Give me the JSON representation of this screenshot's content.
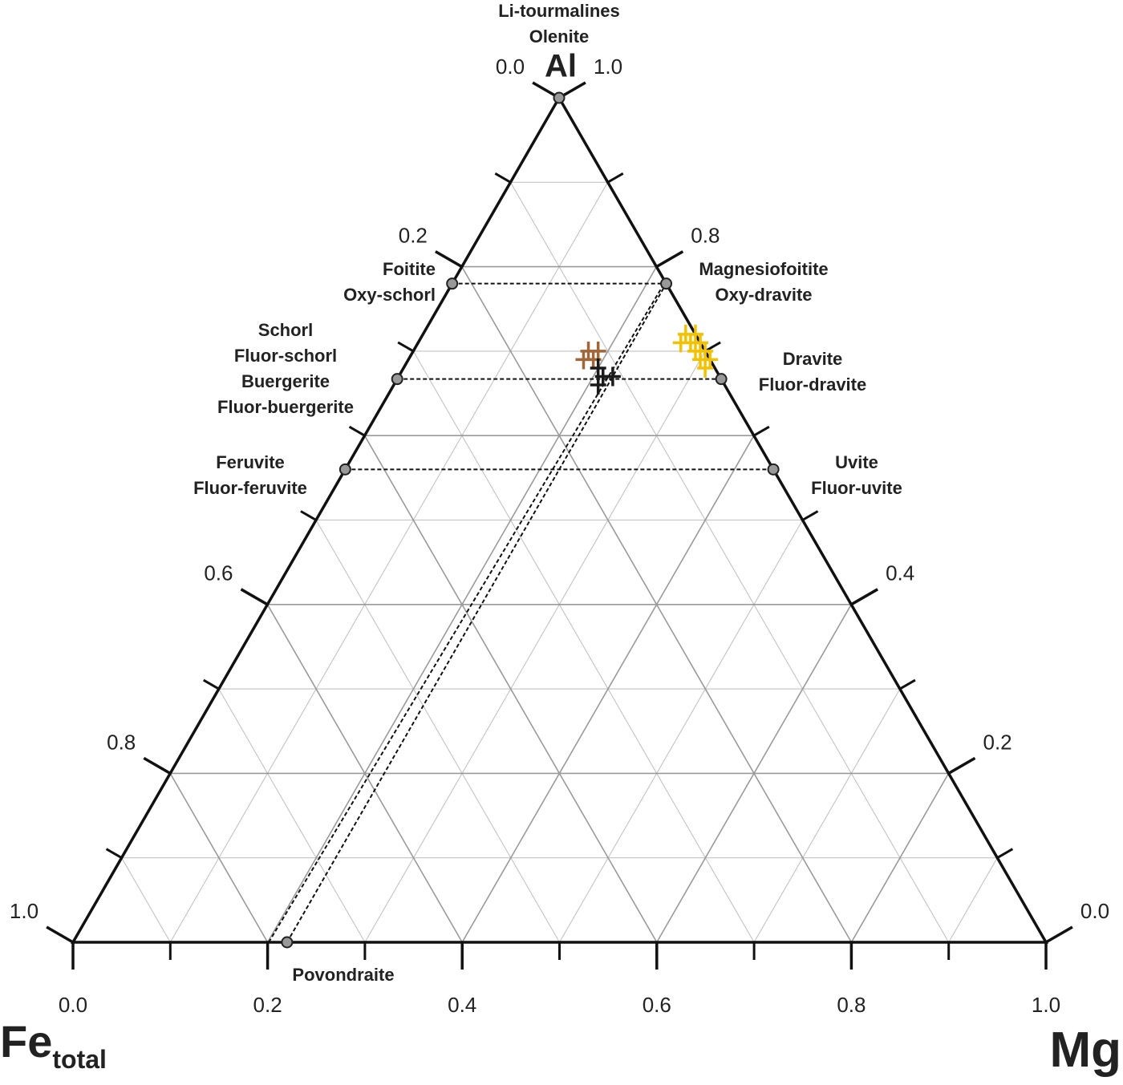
{
  "chart_data": {
    "type": "ternary",
    "vertex_labels": {
      "al": "Al",
      "fe": "Fe",
      "fe_sub": "total",
      "mg": "Mg"
    },
    "grid": [
      0.1,
      0.2,
      0.3,
      0.4,
      0.5,
      0.6,
      0.7,
      0.8,
      0.9
    ],
    "grid_color": "#9a9a9a",
    "bottom_ticks": [
      {
        "value": 0,
        "label": "0.0"
      },
      0.2,
      0.4,
      0.6,
      0.8,
      {
        "value": 1,
        "label": "1.0"
      }
    ],
    "left_ticks": [
      {
        "value": 0,
        "label": "0.0"
      },
      0.2,
      0.6,
      0.8,
      {
        "value": 1,
        "label": "1.0"
      }
    ],
    "right_ticks": [
      {
        "value": 1,
        "label": "1.0"
      },
      0.8,
      0.4,
      0.2,
      {
        "value": 0,
        "label": "0.0"
      }
    ],
    "endmembers": [
      {
        "labels": [
          "Li-tourmalines",
          "Olenite"
        ],
        "al": 1,
        "fe": 0,
        "mg": 0
      },
      {
        "labels": [
          "Foitite",
          "Oxy-schorl"
        ],
        "al": 0.78,
        "fe": 0.22,
        "mg": 0
      },
      {
        "labels": [
          "Magnesiofoitite",
          "Oxy-dravite"
        ],
        "al": 0.78,
        "fe": 0,
        "mg": 0.22
      },
      {
        "labels": [
          "Schorl",
          "Fluor-schorl",
          "Buergerite",
          "Fluor-buergerite"
        ],
        "al": 0.667,
        "fe": 0.333,
        "mg": 0
      },
      {
        "labels": [
          "Dravite",
          "Fluor-dravite"
        ],
        "al": 0.667,
        "fe": 0,
        "mg": 0.333
      },
      {
        "labels": [
          "Feruvite",
          "Fluor-feruvite"
        ],
        "al": 0.56,
        "fe": 0.44,
        "mg": 0
      },
      {
        "labels": [
          "Uvite",
          "Fluor-uvite"
        ],
        "al": 0.56,
        "fe": 0,
        "mg": 0.44
      },
      {
        "labels": [
          "Povondraite"
        ],
        "al": 0,
        "fe": 0.78,
        "mg": 0.22
      }
    ],
    "series": [
      {
        "color": "#a0673a",
        "al": [
          0.7,
          0.69,
          0.7,
          0.69
        ],
        "fe": [
          0.12,
          0.13,
          0.11,
          0.12
        ],
        "mg": [
          0.18,
          0.18,
          0.19,
          0.19
        ]
      },
      {
        "color": "#1a1a1a",
        "al": [
          0.68,
          0.67,
          0.67,
          0.66
        ],
        "fe": [
          0.12,
          0.12,
          0.11,
          0.13
        ],
        "mg": [
          0.2,
          0.21,
          0.22,
          0.21
        ]
      },
      {
        "color": "#f2c200",
        "al": [
          0.72,
          0.71,
          0.71,
          0.7,
          0.7,
          0.69,
          0.69,
          0.72,
          0.71,
          0.68
        ],
        "fe": [
          0.01,
          0.01,
          0.0,
          0.01,
          0.0,
          0.01,
          0.0,
          0.0,
          0.02,
          0.01
        ],
        "mg": [
          0.27,
          0.28,
          0.29,
          0.29,
          0.3,
          0.3,
          0.31,
          0.28,
          0.27,
          0.31
        ]
      }
    ]
  }
}
